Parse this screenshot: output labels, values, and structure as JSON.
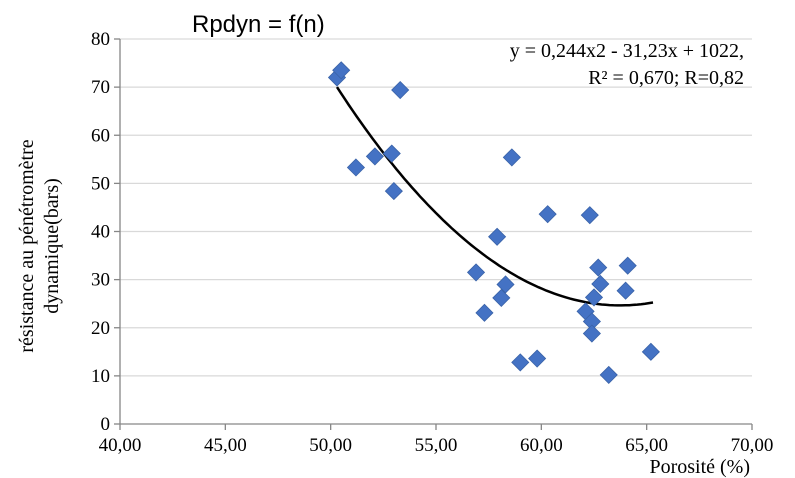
{
  "chart_data": {
    "type": "scatter",
    "title": "Rpdyn = f(n)",
    "xlabel": "Porosité (%)",
    "ylabel_lines": [
      "résistance au pénétromètre",
      "dynamique(bars)"
    ],
    "xlim": [
      40,
      70
    ],
    "ylim": [
      0,
      80
    ],
    "x_ticks": [
      "40,00",
      "45,00",
      "50,00",
      "55,00",
      "60,00",
      "65,00",
      "70,00"
    ],
    "y_ticks": [
      "0",
      "10",
      "20",
      "30",
      "40",
      "50",
      "60",
      "70",
      "80"
    ],
    "grid": true,
    "marker": "diamond",
    "marker_color": "#4472C4",
    "points": [
      {
        "x": 50.3,
        "y": 72.0
      },
      {
        "x": 50.5,
        "y": 73.5
      },
      {
        "x": 53.3,
        "y": 69.4
      },
      {
        "x": 51.2,
        "y": 53.3
      },
      {
        "x": 52.1,
        "y": 55.6
      },
      {
        "x": 52.9,
        "y": 56.2
      },
      {
        "x": 53.0,
        "y": 48.4
      },
      {
        "x": 58.6,
        "y": 55.4
      },
      {
        "x": 60.3,
        "y": 43.6
      },
      {
        "x": 62.3,
        "y": 43.4
      },
      {
        "x": 57.9,
        "y": 38.9
      },
      {
        "x": 56.9,
        "y": 31.5
      },
      {
        "x": 58.3,
        "y": 29.0
      },
      {
        "x": 58.1,
        "y": 26.2
      },
      {
        "x": 57.3,
        "y": 23.1
      },
      {
        "x": 62.7,
        "y": 32.5
      },
      {
        "x": 62.8,
        "y": 29.1
      },
      {
        "x": 64.1,
        "y": 32.9
      },
      {
        "x": 64.0,
        "y": 27.7
      },
      {
        "x": 62.5,
        "y": 26.3
      },
      {
        "x": 62.1,
        "y": 23.4
      },
      {
        "x": 62.4,
        "y": 21.3
      },
      {
        "x": 62.4,
        "y": 18.8
      },
      {
        "x": 59.0,
        "y": 12.8
      },
      {
        "x": 59.8,
        "y": 13.6
      },
      {
        "x": 63.2,
        "y": 10.2
      },
      {
        "x": 65.2,
        "y": 15.0
      }
    ],
    "trendline": {
      "type": "polynomial",
      "x_range": [
        50.3,
        65.3
      ],
      "line_color": "#000000",
      "equation_line1": "y = 0,244x2 - 31,23x + 1022,",
      "equation_line2": "R² = 0,670; R=0,82"
    }
  }
}
